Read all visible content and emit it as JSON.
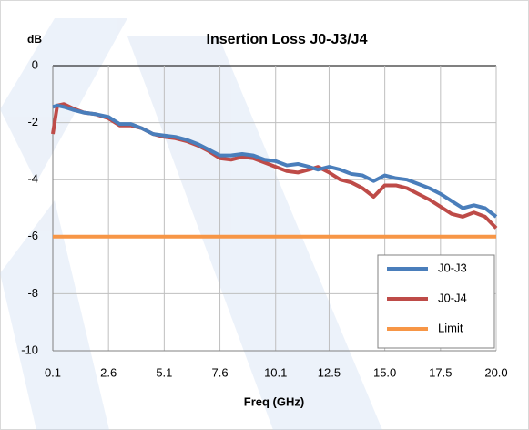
{
  "chart_data": {
    "type": "line",
    "title": "Insertion Loss J0-J3/J4",
    "ylabel": "dB",
    "xlabel": "Freq (GHz)",
    "x": [
      0.1,
      0.3,
      0.6,
      1.0,
      1.5,
      2.0,
      2.6,
      3.1,
      3.6,
      4.1,
      4.6,
      5.1,
      5.6,
      6.1,
      6.6,
      7.1,
      7.6,
      8.1,
      8.6,
      9.1,
      9.6,
      10.1,
      10.6,
      11.1,
      11.6,
      12.0,
      12.5,
      13.0,
      13.5,
      14.0,
      14.5,
      15.0,
      15.5,
      16.0,
      16.5,
      17.0,
      17.5,
      18.0,
      18.5,
      19.0,
      19.5,
      20.0
    ],
    "series": [
      {
        "name": "J0-J3",
        "color": "#4a7ebb",
        "values": [
          -1.45,
          -1.4,
          -1.45,
          -1.55,
          -1.65,
          -1.7,
          -1.8,
          -2.05,
          -2.05,
          -2.2,
          -2.4,
          -2.45,
          -2.5,
          -2.6,
          -2.75,
          -2.95,
          -3.15,
          -3.15,
          -3.1,
          -3.15,
          -3.3,
          -3.35,
          -3.5,
          -3.45,
          -3.55,
          -3.65,
          -3.55,
          -3.65,
          -3.8,
          -3.85,
          -4.05,
          -3.85,
          -3.95,
          -4.0,
          -4.15,
          -4.3,
          -4.5,
          -4.75,
          -5.0,
          -4.9,
          -5.0,
          -5.3
        ]
      },
      {
        "name": "J0-J4",
        "color": "#be4b48",
        "values": [
          -2.4,
          -1.4,
          -1.35,
          -1.5,
          -1.65,
          -1.7,
          -1.85,
          -2.1,
          -2.1,
          -2.2,
          -2.4,
          -2.5,
          -2.55,
          -2.65,
          -2.8,
          -3.0,
          -3.25,
          -3.3,
          -3.2,
          -3.25,
          -3.4,
          -3.55,
          -3.7,
          -3.75,
          -3.65,
          -3.55,
          -3.75,
          -4.0,
          -4.1,
          -4.3,
          -4.6,
          -4.2,
          -4.2,
          -4.3,
          -4.5,
          -4.7,
          -4.95,
          -5.2,
          -5.3,
          -5.15,
          -5.3,
          -5.7
        ]
      },
      {
        "name": "Limit",
        "color": "#f79646",
        "values": [
          -6,
          -6,
          -6,
          -6,
          -6,
          -6,
          -6,
          -6,
          -6,
          -6,
          -6,
          -6,
          -6,
          -6,
          -6,
          -6,
          -6,
          -6,
          -6,
          -6,
          -6,
          -6,
          -6,
          -6,
          -6,
          -6,
          -6,
          -6,
          -6,
          -6,
          -6,
          -6,
          -6,
          -6,
          -6,
          -6,
          -6,
          -6,
          -6,
          -6,
          -6,
          -6
        ]
      }
    ],
    "xlim": [
      0.1,
      20.0
    ],
    "xticks": [
      0.1,
      2.6,
      5.1,
      7.6,
      10.1,
      12.5,
      {
        "value": 15,
        "label": "15.0"
      },
      17.5,
      {
        "value": 20,
        "label": "20.0"
      }
    ],
    "ylim": [
      -10,
      0
    ],
    "yticks": [
      0,
      -2,
      -4,
      -6,
      -8,
      -10
    ],
    "grid": true,
    "legend": "lower right"
  }
}
